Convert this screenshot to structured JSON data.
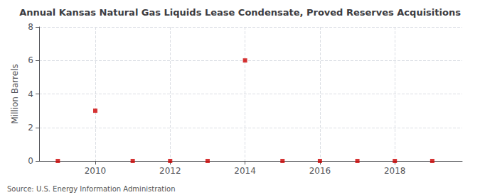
{
  "chart_data": {
    "type": "scatter",
    "title": "Annual Kansas Natural Gas Liquids Lease Condensate, Proved Reserves Acquisitions",
    "ylabel": "Million Barrels",
    "annotations": [
      "Source: U.S. Energy Information Administration"
    ],
    "x": [
      2009,
      2010,
      2011,
      2012,
      2013,
      2014,
      2015,
      2016,
      2017,
      2018,
      2019
    ],
    "values": [
      0.0,
      3.0,
      0.0,
      0.0,
      0.0,
      6.0,
      0.0,
      0.0,
      0.0,
      0.0,
      0.0
    ],
    "color": "#cc0000",
    "marker": "square",
    "xlim": [
      2008.5,
      2019.8
    ],
    "ylim": [
      0,
      8
    ],
    "xticks": [
      2010,
      2012,
      2014,
      2016,
      2018
    ],
    "yticks": [
      0,
      2,
      4,
      6,
      8
    ],
    "grid": true
  }
}
